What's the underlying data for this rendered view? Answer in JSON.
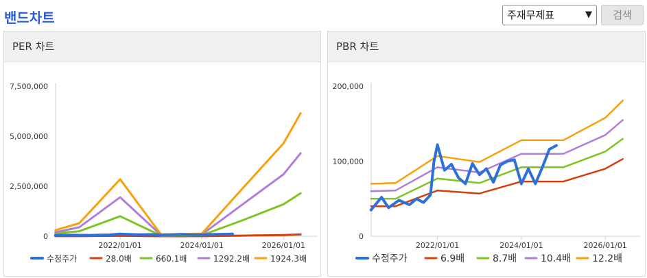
{
  "page": {
    "title": "밴드차트"
  },
  "controls": {
    "select_value": "주재무제표",
    "search_label": "검색"
  },
  "colors": {
    "stock": "#2f6fd9",
    "b1": "#d4400b",
    "b2": "#7dc520",
    "b3": "#b07ed8",
    "b4": "#f7a10c"
  },
  "chart_data": [
    {
      "type": "line",
      "title": "PER 차트",
      "x_ticks": [
        "2022/01/01",
        "2024/01/01",
        "2026/01/01"
      ],
      "ylim": [
        0,
        7500000
      ],
      "y_ticks": [
        "0",
        "2,500,000",
        "5,000,000",
        "7,500,000"
      ],
      "y_tick_values": [
        0,
        2500000,
        5000000,
        7500000
      ],
      "legend": "bottom",
      "series": [
        {
          "name": "28.0배",
          "color": "b1",
          "x": [
            "2020/06",
            "2021/01",
            "2022/01",
            "2023/01",
            "2024/01",
            "2025/01",
            "2026/01",
            "2026/06"
          ],
          "values": [
            2000,
            5000,
            20000,
            1500,
            2500,
            30000,
            60000,
            90000
          ]
        },
        {
          "name": "660.1배",
          "color": "b2",
          "x": [
            "2020/06",
            "2021/01",
            "2022/01",
            "2023/01",
            "2024/01",
            "2025/01",
            "2026/01",
            "2026/06"
          ],
          "values": [
            150000,
            250000,
            1000000,
            30000,
            50000,
            800000,
            1600000,
            2150000
          ]
        },
        {
          "name": "1292.2배",
          "color": "b3",
          "x": [
            "2020/06",
            "2021/01",
            "2022/01",
            "2023/01",
            "2024/01",
            "2025/01",
            "2026/01",
            "2026/06"
          ],
          "values": [
            200000,
            450000,
            1950000,
            60000,
            90000,
            1600000,
            3100000,
            4150000
          ]
        },
        {
          "name": "1924.3배",
          "color": "b4",
          "x": [
            "2020/06",
            "2021/01",
            "2022/01",
            "2023/01",
            "2024/01",
            "2025/01",
            "2026/01",
            "2026/06"
          ],
          "values": [
            300000,
            650000,
            2850000,
            90000,
            130000,
            2400000,
            4650000,
            6150000
          ]
        },
        {
          "name": "수정주가",
          "color": "stock",
          "x": [
            "2020/06",
            "2020/09",
            "2021/01",
            "2021/04",
            "2021/07",
            "2021/10",
            "2022/01",
            "2022/04",
            "2022/07",
            "2022/10",
            "2023/01",
            "2023/04",
            "2023/07",
            "2023/10",
            "2024/01",
            "2024/04",
            "2024/07",
            "2024/10"
          ],
          "values": [
            40000,
            60000,
            50000,
            45000,
            60000,
            70000,
            110000,
            90000,
            80000,
            85000,
            70000,
            75000,
            95000,
            80000,
            75000,
            90000,
            100000,
            110000
          ]
        }
      ]
    },
    {
      "type": "line",
      "title": "PBR 차트",
      "x_ticks": [
        "2022/01/01",
        "2024/01/01",
        "2026/01/01"
      ],
      "ylim": [
        0,
        200000
      ],
      "y_ticks": [
        "0",
        "100,000",
        "200,000"
      ],
      "y_tick_values": [
        0,
        100000,
        200000
      ],
      "legend": "bottom",
      "series": [
        {
          "name": "6.9배",
          "color": "b1",
          "x": [
            "2020/06",
            "2021/01",
            "2022/01",
            "2023/01",
            "2024/01",
            "2025/01",
            "2026/01",
            "2026/06"
          ],
          "values": [
            40000,
            40000,
            61000,
            57000,
            73000,
            73000,
            90000,
            103000
          ]
        },
        {
          "name": "8.7배",
          "color": "b2",
          "x": [
            "2020/06",
            "2021/01",
            "2022/01",
            "2023/01",
            "2024/01",
            "2025/01",
            "2026/01",
            "2026/06"
          ],
          "values": [
            50000,
            50000,
            77000,
            71000,
            92000,
            92000,
            113000,
            130000
          ]
        },
        {
          "name": "10.4배",
          "color": "b3",
          "x": [
            "2020/06",
            "2021/01",
            "2022/01",
            "2023/01",
            "2024/01",
            "2025/01",
            "2026/01",
            "2026/06"
          ],
          "values": [
            60000,
            61000,
            92000,
            85000,
            110000,
            110000,
            135000,
            155000
          ]
        },
        {
          "name": "12.2배",
          "color": "b4",
          "x": [
            "2020/06",
            "2021/01",
            "2022/01",
            "2023/01",
            "2024/01",
            "2025/01",
            "2026/01",
            "2026/06"
          ],
          "values": [
            70000,
            71000,
            107000,
            99000,
            128000,
            128000,
            158000,
            181000
          ]
        },
        {
          "name": "수정주가",
          "color": "stock",
          "x": [
            "2020/06",
            "2020/09",
            "2020/11",
            "2021/02",
            "2021/05",
            "2021/07",
            "2021/09",
            "2021/11",
            "2021/12",
            "2022/01",
            "2022/03",
            "2022/05",
            "2022/07",
            "2022/09",
            "2022/11",
            "2023/01",
            "2023/03",
            "2023/05",
            "2023/07",
            "2023/09",
            "2023/11",
            "2024/01",
            "2024/03",
            "2024/05",
            "2024/07",
            "2024/09",
            "2024/11"
          ],
          "values": [
            35000,
            52000,
            38000,
            48000,
            42000,
            50000,
            45000,
            55000,
            100000,
            122000,
            88000,
            96000,
            78000,
            70000,
            97000,
            82000,
            90000,
            72000,
            95000,
            100000,
            102000,
            70000,
            90000,
            70000,
            92000,
            116000,
            121000
          ]
        }
      ]
    }
  ]
}
